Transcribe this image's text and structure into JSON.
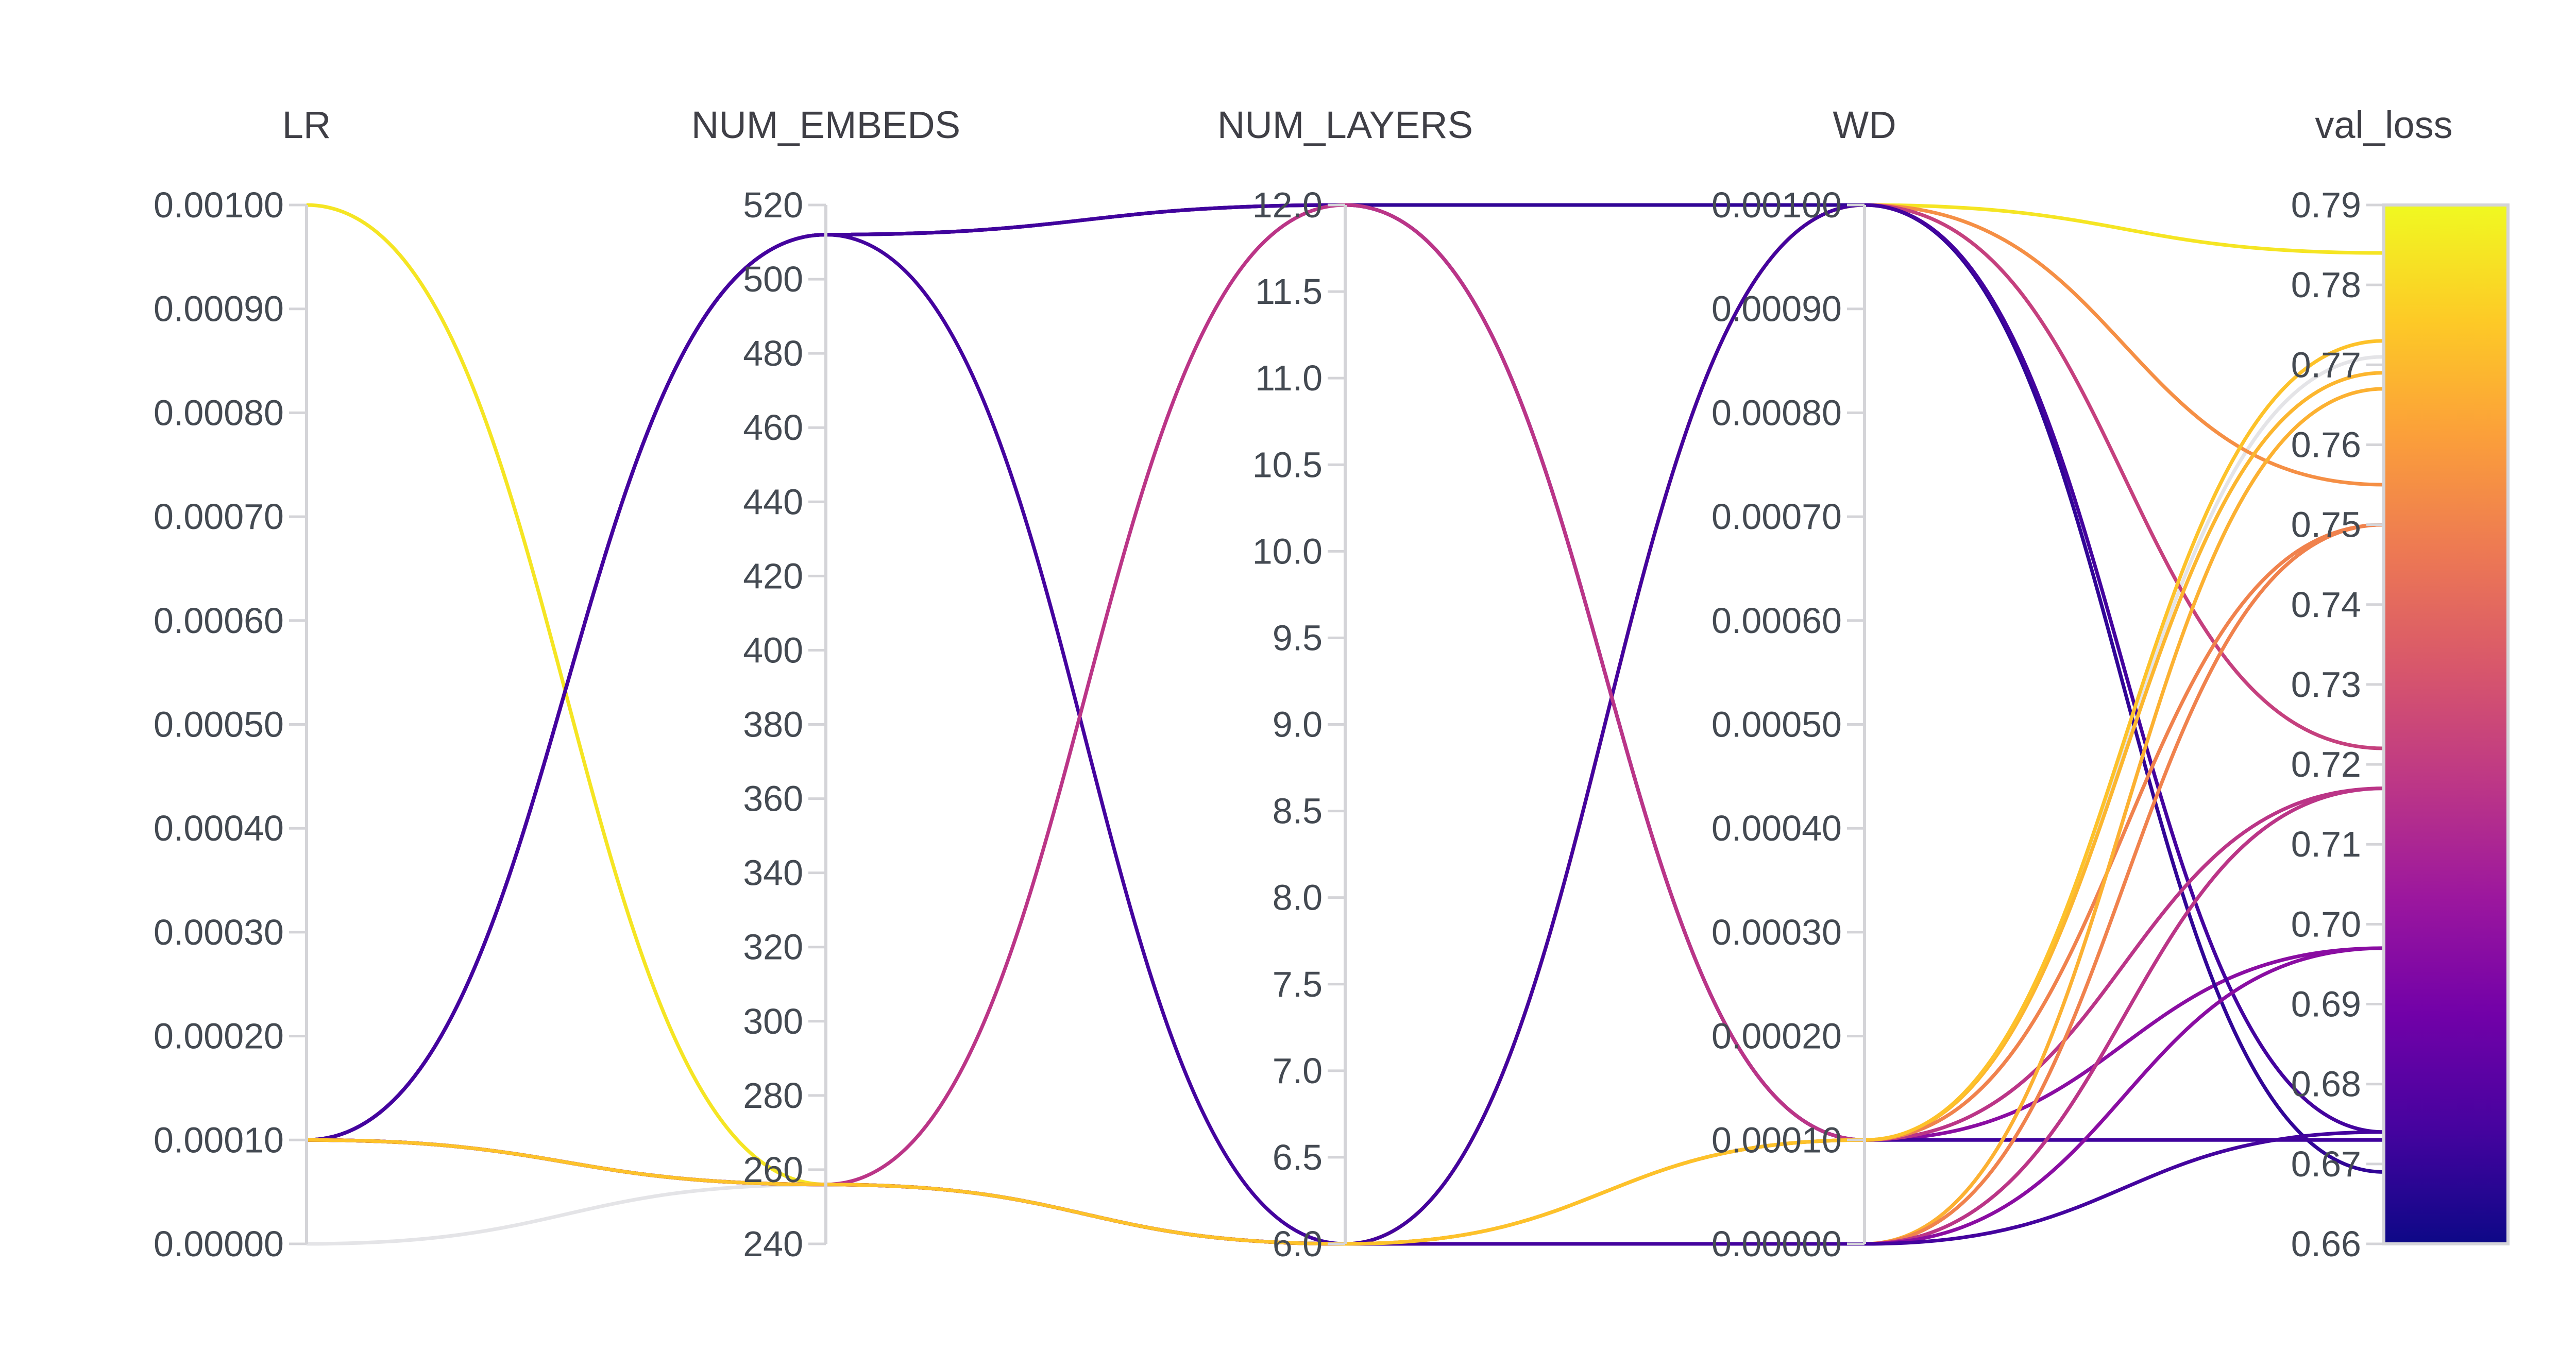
{
  "chart_data": {
    "type": "parallel_coordinates",
    "axes": [
      {
        "key": "LR",
        "label": "LR",
        "range": [
          0,
          0.001
        ],
        "ticks": [
          "0.00000",
          "0.00010",
          "0.00020",
          "0.00030",
          "0.00040",
          "0.00050",
          "0.00060",
          "0.00070",
          "0.00080",
          "0.00090",
          "0.00100"
        ]
      },
      {
        "key": "NUM_EMBEDS",
        "label": "NUM_EMBEDS",
        "range": [
          240,
          520
        ],
        "ticks": [
          "240",
          "260",
          "280",
          "300",
          "320",
          "340",
          "360",
          "380",
          "400",
          "420",
          "440",
          "460",
          "480",
          "500",
          "520"
        ]
      },
      {
        "key": "NUM_LAYERS",
        "label": "NUM_LAYERS",
        "range": [
          6,
          12
        ],
        "ticks": [
          "6.0",
          "6.5",
          "7.0",
          "7.5",
          "8.0",
          "8.5",
          "9.0",
          "9.5",
          "10.0",
          "10.5",
          "11.0",
          "11.5",
          "12.0"
        ]
      },
      {
        "key": "WD",
        "label": "WD",
        "range": [
          0,
          0.001
        ],
        "ticks": [
          "0.00000",
          "0.00010",
          "0.00020",
          "0.00030",
          "0.00040",
          "0.00050",
          "0.00060",
          "0.00070",
          "0.00080",
          "0.00090",
          "0.00100"
        ]
      },
      {
        "key": "val_loss",
        "label": "val_loss",
        "range": [
          0.66,
          0.79
        ],
        "ticks": [
          "0.66",
          "0.67",
          "0.68",
          "0.69",
          "0.70",
          "0.71",
          "0.72",
          "0.73",
          "0.74",
          "0.75",
          "0.76",
          "0.77",
          "0.78",
          "0.79"
        ]
      }
    ],
    "colorscale": [
      "#0d0887",
      "#46039f",
      "#7201a8",
      "#9c179e",
      "#bd3786",
      "#d8576b",
      "#ed7953",
      "#fb9f3a",
      "#fdca26",
      "#f0f921"
    ],
    "colorbar_ticks": [
      "0.66",
      "0.67",
      "0.68",
      "0.69",
      "0.70",
      "0.71",
      "0.72",
      "0.73",
      "0.74",
      "0.75",
      "0.76",
      "0.77",
      "0.78",
      "0.79"
    ],
    "runs": [
      {
        "LR": 0.001,
        "NUM_EMBEDS": 256,
        "NUM_LAYERS": 6,
        "WD": 0.001,
        "val_loss": 0.784
      },
      {
        "LR": 0.0001,
        "NUM_EMBEDS": 256,
        "NUM_LAYERS": 6,
        "WD": 0.001,
        "val_loss": 0.755
      },
      {
        "LR": 0.0001,
        "NUM_EMBEDS": 512,
        "NUM_LAYERS": 12,
        "WD": 0.001,
        "val_loss": 0.722
      },
      {
        "LR": 0.0001,
        "NUM_EMBEDS": 512,
        "NUM_LAYERS": 12,
        "WD": 0.0001,
        "val_loss": 0.697
      },
      {
        "LR": 0.0001,
        "NUM_EMBEDS": 512,
        "NUM_LAYERS": 12,
        "WD": 0.001,
        "val_loss": 0.669
      },
      {
        "LR": 0.0001,
        "NUM_EMBEDS": 512,
        "NUM_LAYERS": 12,
        "WD": 0.0001,
        "val_loss": 0.673
      },
      {
        "LR": 0.0001,
        "NUM_EMBEDS": 512,
        "NUM_LAYERS": 6,
        "WD": 0.001,
        "val_loss": 0.674
      },
      {
        "LR": 0.0001,
        "NUM_EMBEDS": 256,
        "NUM_LAYERS": 12,
        "WD": 0.0001,
        "val_loss": 0.717
      },
      {
        "LR": 0.0001,
        "NUM_EMBEDS": 256,
        "NUM_LAYERS": 6,
        "WD": 0.0001,
        "val_loss": 0.769
      },
      {
        "LR": 0.0001,
        "NUM_EMBEDS": 256,
        "NUM_LAYERS": 6,
        "WD": 0.0001,
        "val_loss": 0.75
      },
      {
        "LR": 0.0001,
        "NUM_EMBEDS": 256,
        "NUM_LAYERS": 6,
        "WD": 0,
        "val_loss": 0.767
      },
      {
        "LR": 0.0001,
        "NUM_EMBEDS": 256,
        "NUM_LAYERS": 6,
        "WD": 0,
        "val_loss": 0.75
      },
      {
        "LR": 0.0001,
        "NUM_EMBEDS": 256,
        "NUM_LAYERS": 6,
        "WD": 0,
        "val_loss": 0.717
      },
      {
        "LR": 0.0001,
        "NUM_EMBEDS": 256,
        "NUM_LAYERS": 6,
        "WD": 0,
        "val_loss": 0.697
      },
      {
        "LR": 0.0001,
        "NUM_EMBEDS": 256,
        "NUM_LAYERS": 6,
        "WD": 0,
        "val_loss": 0.674
      },
      {
        "LR": 0.0001,
        "NUM_EMBEDS": 256,
        "NUM_LAYERS": 6,
        "WD": 0.0001,
        "val_loss": 0.773
      },
      {
        "LR": 0,
        "NUM_EMBEDS": 256,
        "NUM_LAYERS": 6,
        "WD": 0.0001,
        "val_loss": 0.771,
        "filtered": true
      }
    ]
  }
}
